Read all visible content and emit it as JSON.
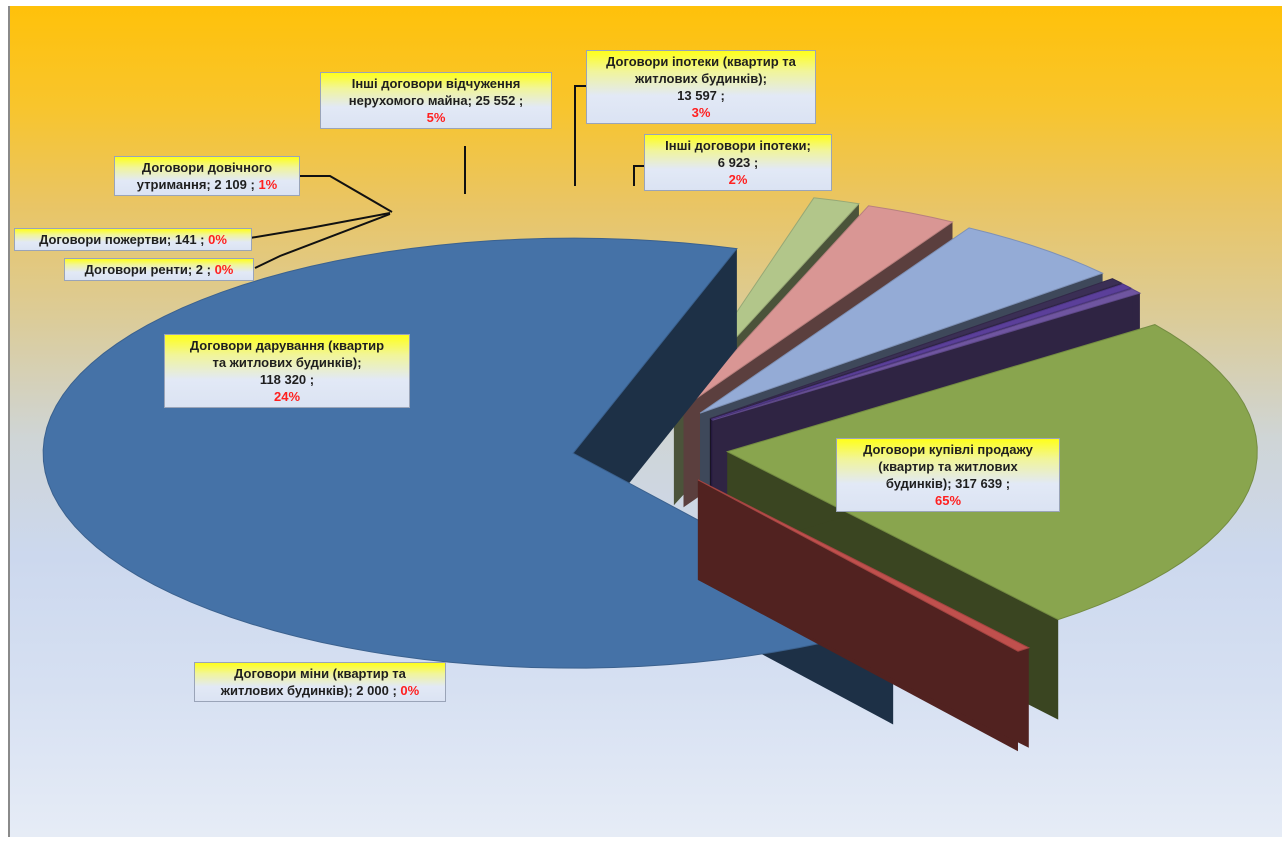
{
  "chart_data": {
    "type": "pie",
    "title": "",
    "slices": [
      {
        "label": "Договори купівлі продажу (квартир та житлових будинків)",
        "value": 317639,
        "value_text": "317 639",
        "percent": "65%",
        "color": "#4572a7"
      },
      {
        "label": "Договори міни (квартир та житлових будинків)",
        "value": 2000,
        "value_text": "2 000",
        "percent": "0%",
        "color": "#c0504d"
      },
      {
        "label": "Договори дарування (квартир та житлових будинків)",
        "value": 118320,
        "value_text": "118 320",
        "percent": "24%",
        "color": "#89a54e"
      },
      {
        "label": "Договори ренти",
        "value": 2,
        "value_text": "2",
        "percent": "0%",
        "color": "#6f55a0"
      },
      {
        "label": "Договори пожертви",
        "value": 141,
        "value_text": "141",
        "percent": "0%",
        "color": "#5b3f9a"
      },
      {
        "label": "Договори довічного утримання",
        "value": 2109,
        "value_text": "2 109",
        "percent": "1%",
        "color": "#3b2f55"
      },
      {
        "label": "Інші договори відчуження нерухомого майна",
        "value": 25552,
        "value_text": "25 552",
        "percent": "5%",
        "color": "#94abd6"
      },
      {
        "label": "Договори іпотеки (квартир та житлових будинків)",
        "value": 13597,
        "value_text": "13 597",
        "percent": "3%",
        "color": "#d99694"
      },
      {
        "label": "Інші договори іпотеки",
        "value": 6923,
        "value_text": "6 923",
        "percent": "2%",
        "color": "#b2c68a"
      }
    ]
  },
  "labels": {
    "sale_1": "Договори купівлі продажу",
    "sale_2": "(квартир та житлових",
    "sale_3": "будинків); 317 639 ;",
    "sale_pct": "65%",
    "exchange_1": "Договори міни (квартир та",
    "exchange_2": "житлових будинків); 2 000 ;",
    "exchange_pct": "0%",
    "gift_1": "Договори дарування (квартир",
    "gift_2": "та житлових будинків);",
    "gift_3": "118 320 ;",
    "gift_pct": "24%",
    "rent": "Договори ренти; 2 ;",
    "rent_pct": "0%",
    "donation": "Договори пожертви; 141 ;",
    "donation_pct": "0%",
    "lifecare_1": "Договори довічного",
    "lifecare_2": "утримання; 2 109 ;",
    "lifecare_pct": "1%",
    "other_alien_1": "Інші договори відчуження",
    "other_alien_2": "нерухомого майна; 25 552 ;",
    "other_alien_pct": "5%",
    "mortgage_1": "Договори іпотеки (квартир та",
    "mortgage_2": "житлових будинків);",
    "mortgage_3": "13 597 ;",
    "mortgage_pct": "3%",
    "other_mortgage_1": "Інші договори іпотеки;",
    "other_mortgage_2": "6 923 ;",
    "other_mortgage_pct": "2%"
  }
}
